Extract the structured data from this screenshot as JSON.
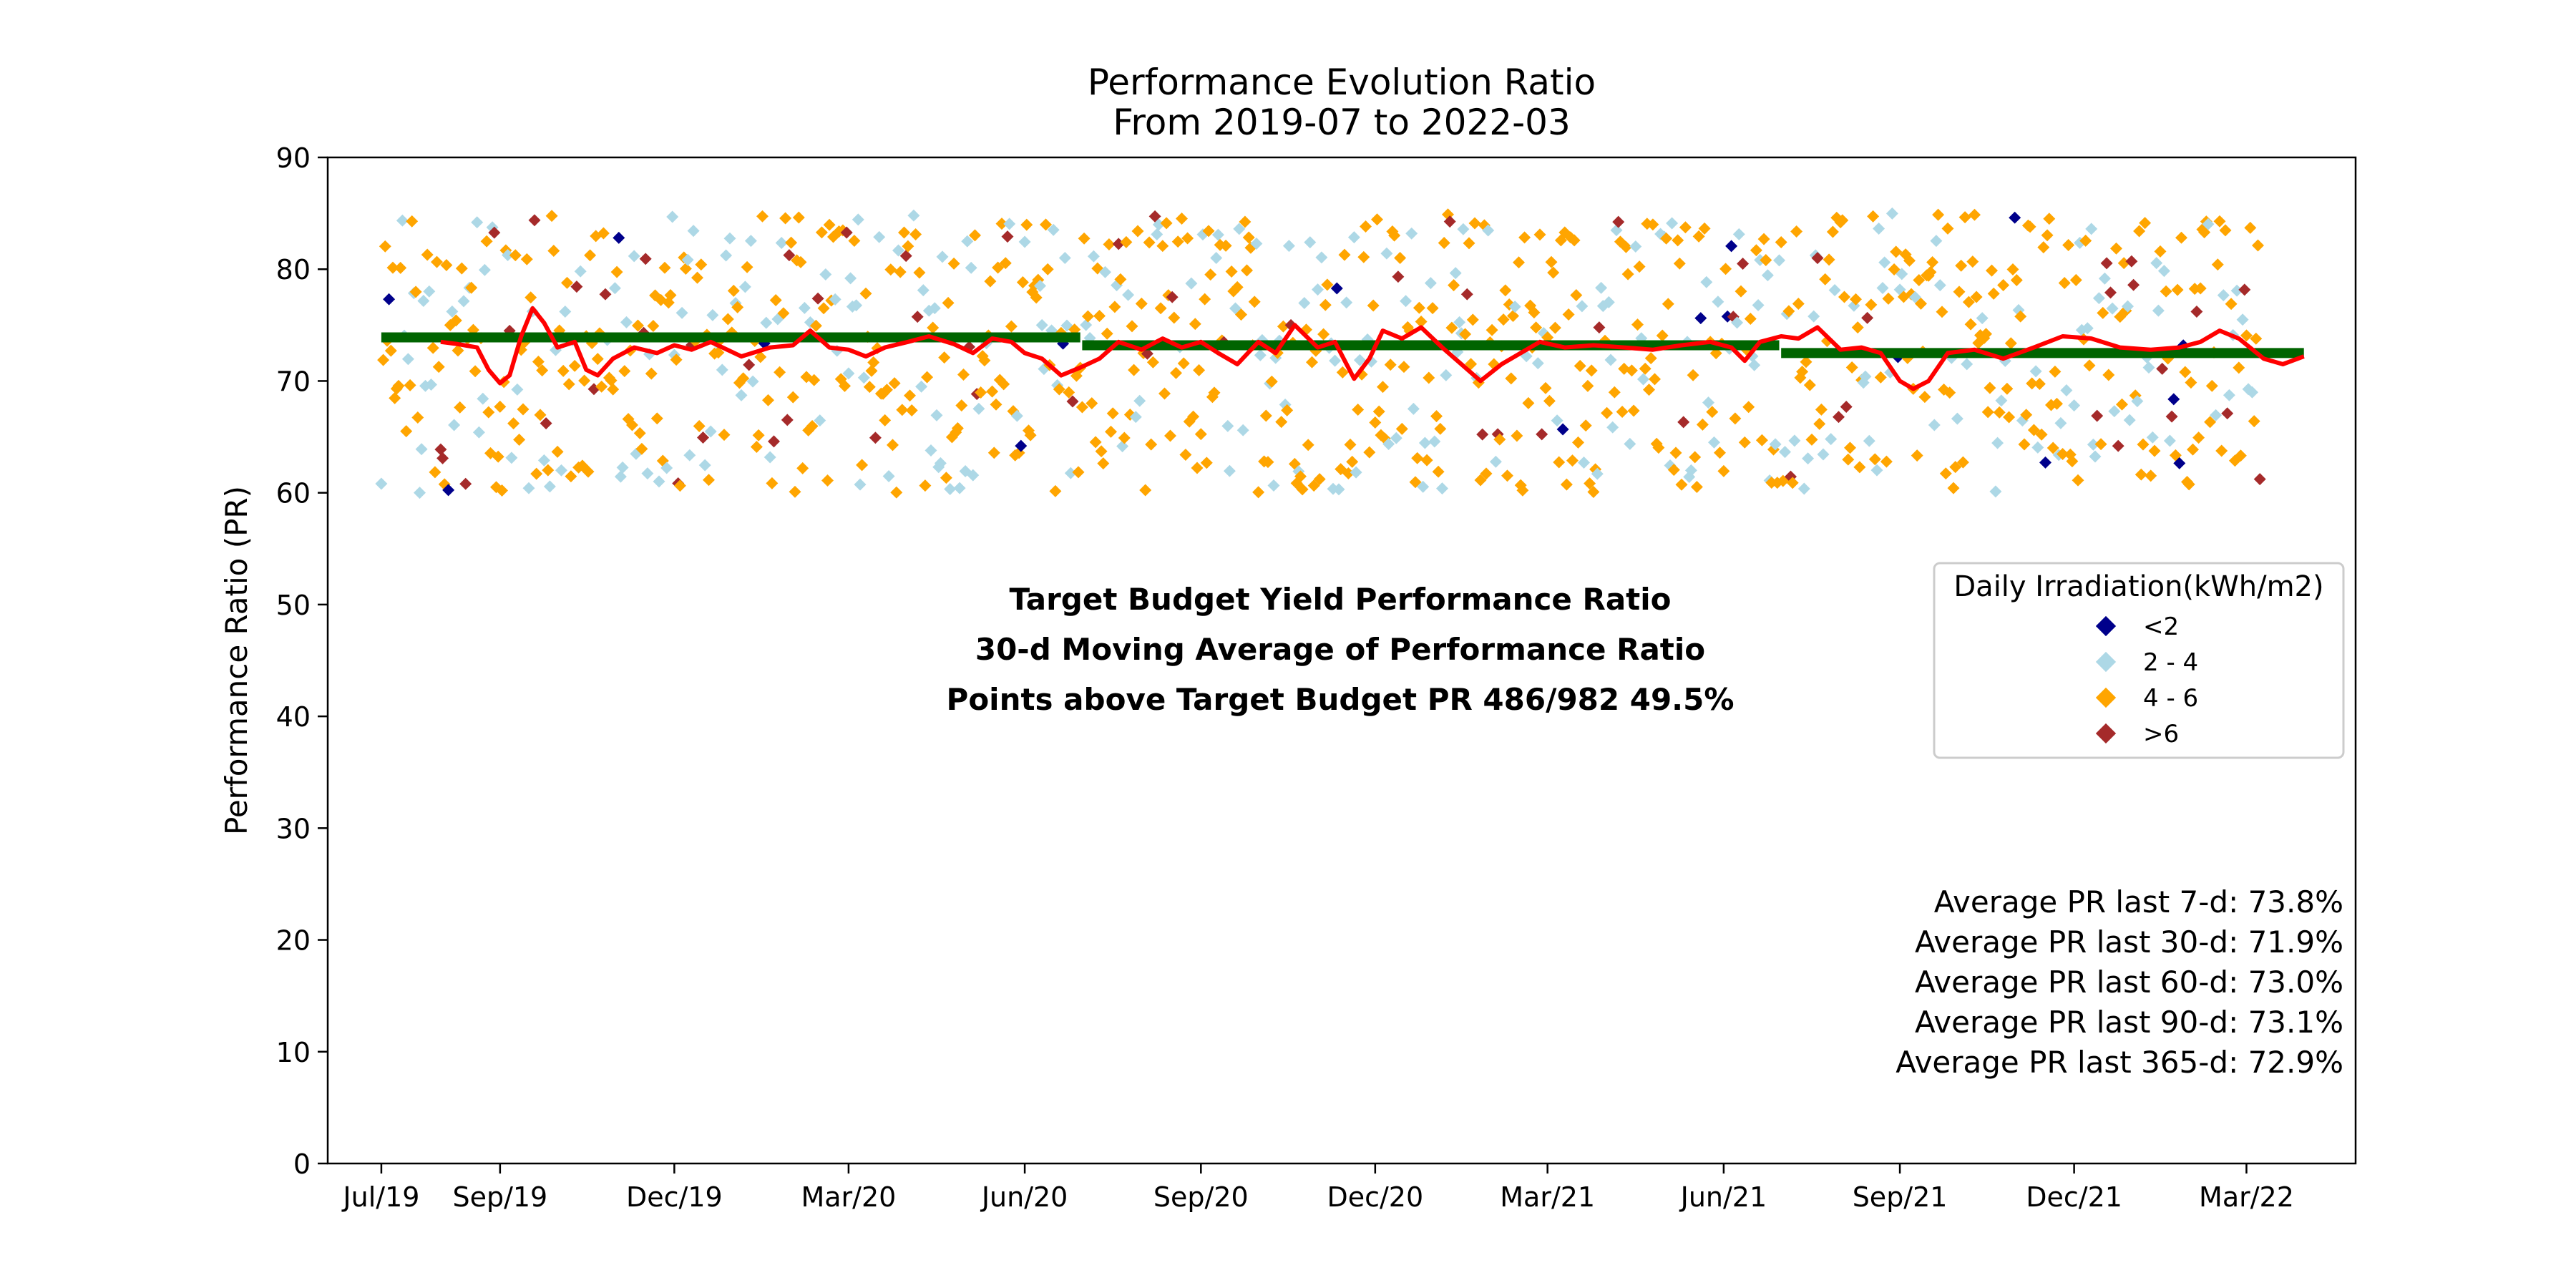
{
  "chart_data": {
    "type": "scatter",
    "title": "Performance Evolution Ratio",
    "subtitle": "From 2019-07 to 2022-03",
    "xlabel": "",
    "ylabel": "Performance Ratio (PR)",
    "ylim": [
      0,
      90
    ],
    "yticks": [
      0,
      10,
      20,
      30,
      40,
      50,
      60,
      70,
      80,
      90
    ],
    "xlim": [
      "2019-06-03",
      "2022-04-27"
    ],
    "xticks": [
      {
        "date": "2019-07-01",
        "label": "Jul/19"
      },
      {
        "date": "2019-09-01",
        "label": "Sep/19"
      },
      {
        "date": "2019-12-01",
        "label": "Dec/19"
      },
      {
        "date": "2020-03-01",
        "label": "Mar/20"
      },
      {
        "date": "2020-06-01",
        "label": "Jun/20"
      },
      {
        "date": "2020-09-01",
        "label": "Sep/20"
      },
      {
        "date": "2020-12-01",
        "label": "Dec/20"
      },
      {
        "date": "2021-03-01",
        "label": "Mar/21"
      },
      {
        "date": "2021-06-01",
        "label": "Jun/21"
      },
      {
        "date": "2021-09-01",
        "label": "Sep/21"
      },
      {
        "date": "2021-12-01",
        "label": "Dec/21"
      },
      {
        "date": "2022-03-01",
        "label": "Mar/22"
      }
    ],
    "grid": false,
    "legend": {
      "title": "Daily Irradiation(kWh/m2)",
      "placement": "center-right",
      "entries": [
        {
          "label": "<2",
          "color": "#00008b"
        },
        {
          "label": "2 - 4",
          "color": "#add8e6"
        },
        {
          "label": "4 - 6",
          "color": "#ffa500"
        },
        {
          "label": ">6",
          "color": "#a52a2a"
        }
      ]
    },
    "target_budget": {
      "color": "#006400",
      "segments": [
        {
          "start": "2019-07-01",
          "end": "2020-06-30",
          "value": 73.9
        },
        {
          "start": "2020-07-01",
          "end": "2021-06-30",
          "value": 73.2
        },
        {
          "start": "2021-07-01",
          "end": "2022-03-31",
          "value": 72.5
        }
      ]
    },
    "moving_average": {
      "color": "#ff0000",
      "start": "2019-08-01",
      "end": "2022-03-31",
      "points": [
        [
          "2019-08-01",
          73.5
        ],
        [
          "2019-08-10",
          73.3
        ],
        [
          "2019-08-20",
          73.0
        ],
        [
          "2019-08-26",
          71.0
        ],
        [
          "2019-09-01",
          69.8
        ],
        [
          "2019-09-06",
          70.5
        ],
        [
          "2019-09-12",
          74.0
        ],
        [
          "2019-09-18",
          76.5
        ],
        [
          "2019-09-24",
          75.2
        ],
        [
          "2019-10-01",
          73.0
        ],
        [
          "2019-10-10",
          73.5
        ],
        [
          "2019-10-16",
          71.0
        ],
        [
          "2019-10-22",
          70.5
        ],
        [
          "2019-10-30",
          72.0
        ],
        [
          "2019-11-10",
          73.0
        ],
        [
          "2019-11-22",
          72.5
        ],
        [
          "2019-12-01",
          73.2
        ],
        [
          "2019-12-10",
          72.8
        ],
        [
          "2019-12-20",
          73.5
        ],
        [
          "2020-01-05",
          72.2
        ],
        [
          "2020-01-20",
          73.0
        ],
        [
          "2020-02-01",
          73.2
        ],
        [
          "2020-02-10",
          74.5
        ],
        [
          "2020-02-20",
          73.0
        ],
        [
          "2020-03-01",
          72.8
        ],
        [
          "2020-03-10",
          72.2
        ],
        [
          "2020-03-20",
          73.0
        ],
        [
          "2020-04-01",
          73.5
        ],
        [
          "2020-04-12",
          74.0
        ],
        [
          "2020-04-25",
          73.3
        ],
        [
          "2020-05-05",
          72.5
        ],
        [
          "2020-05-15",
          73.8
        ],
        [
          "2020-05-25",
          73.5
        ],
        [
          "2020-06-01",
          72.5
        ],
        [
          "2020-06-10",
          72.0
        ],
        [
          "2020-06-20",
          70.5
        ],
        [
          "2020-06-30",
          71.2
        ],
        [
          "2020-07-10",
          72.0
        ],
        [
          "2020-07-20",
          73.5
        ],
        [
          "2020-08-01",
          72.8
        ],
        [
          "2020-08-12",
          73.8
        ],
        [
          "2020-08-22",
          73.0
        ],
        [
          "2020-09-01",
          73.5
        ],
        [
          "2020-09-10",
          72.5
        ],
        [
          "2020-09-20",
          71.5
        ],
        [
          "2020-10-01",
          73.5
        ],
        [
          "2020-10-10",
          72.5
        ],
        [
          "2020-10-20",
          75.0
        ],
        [
          "2020-11-01",
          73.0
        ],
        [
          "2020-11-10",
          73.5
        ],
        [
          "2020-11-20",
          70.2
        ],
        [
          "2020-11-28",
          72.0
        ],
        [
          "2020-12-05",
          74.5
        ],
        [
          "2020-12-15",
          73.8
        ],
        [
          "2020-12-25",
          74.8
        ],
        [
          "2021-01-05",
          73.0
        ],
        [
          "2021-01-15",
          71.5
        ],
        [
          "2021-01-25",
          70.0
        ],
        [
          "2021-02-05",
          71.5
        ],
        [
          "2021-02-15",
          72.5
        ],
        [
          "2021-02-25",
          73.5
        ],
        [
          "2021-03-10",
          73.0
        ],
        [
          "2021-03-25",
          73.2
        ],
        [
          "2021-04-10",
          73.0
        ],
        [
          "2021-04-25",
          72.8
        ],
        [
          "2021-05-10",
          73.2
        ],
        [
          "2021-05-25",
          73.5
        ],
        [
          "2021-06-05",
          73.0
        ],
        [
          "2021-06-12",
          71.8
        ],
        [
          "2021-06-20",
          73.5
        ],
        [
          "2021-07-01",
          74.0
        ],
        [
          "2021-07-10",
          73.8
        ],
        [
          "2021-07-20",
          74.8
        ],
        [
          "2021-08-01",
          72.8
        ],
        [
          "2021-08-12",
          73.0
        ],
        [
          "2021-08-22",
          72.5
        ],
        [
          "2021-09-01",
          70.0
        ],
        [
          "2021-09-08",
          69.3
        ],
        [
          "2021-09-16",
          70.0
        ],
        [
          "2021-09-26",
          72.5
        ],
        [
          "2021-10-10",
          72.8
        ],
        [
          "2021-10-25",
          72.0
        ],
        [
          "2021-11-10",
          73.0
        ],
        [
          "2021-11-25",
          74.0
        ],
        [
          "2021-12-10",
          73.8
        ],
        [
          "2021-12-25",
          73.0
        ],
        [
          "2022-01-10",
          72.8
        ],
        [
          "2022-01-25",
          73.0
        ],
        [
          "2022-02-05",
          73.5
        ],
        [
          "2022-02-15",
          74.5
        ],
        [
          "2022-02-25",
          73.8
        ],
        [
          "2022-03-10",
          72.0
        ],
        [
          "2022-03-20",
          71.5
        ],
        [
          "2022-03-31",
          72.2
        ]
      ]
    },
    "daily_pr": {
      "start": "2019-07-01",
      "end": "2022-03-31",
      "count": 982,
      "y_range": [
        60,
        85
      ],
      "category_colors": {
        "<2": "#00008b",
        "2 - 4": "#add8e6",
        "4 - 6": "#ffa500",
        ">6": "#a52a2a"
      },
      "category_share": {
        "<2": 0.01,
        "2 - 4": 0.28,
        "4 - 6": 0.64,
        ">6": 0.07
      }
    },
    "annotations": {
      "target_label": "Target Budget Yield Performance Ratio",
      "target_label_color": "#006400",
      "ma_label": "30-d Moving Average of Performance Ratio",
      "ma_label_color": "#ff0000",
      "points_above": "Points above Target Budget PR 486/982 49.5%"
    },
    "averages": [
      "Average PR last 7-d: 73.8%",
      "Average PR last 30-d: 71.9%",
      "Average PR last 60-d: 73.0%",
      "Average PR last 90-d: 73.1%",
      "Average PR last 365-d: 72.9%"
    ]
  }
}
